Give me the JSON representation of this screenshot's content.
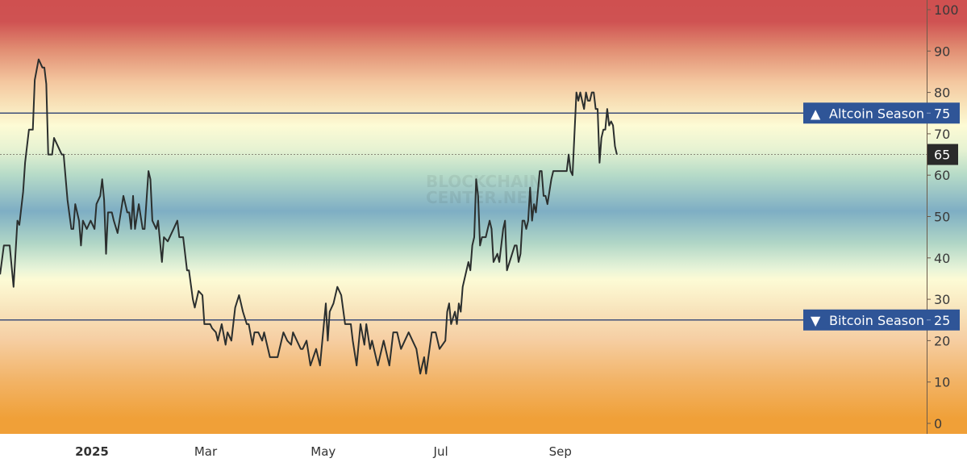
{
  "watermark": {
    "line1": "BLOCKCHAIN",
    "line2": "CENTER.NET"
  },
  "colors": {
    "line": "#2b2f2e",
    "threshold_line": "#3f4f7a",
    "marker_box": "#2f5597",
    "current_box": "#2a2a2a",
    "gradient_top": "#cf5050",
    "gradient_mid": "#7eaec4",
    "gradient_bottom": "#f0a038"
  },
  "chart_data": {
    "type": "line",
    "title": "",
    "xlabel": "",
    "ylabel": "",
    "ylim": [
      0,
      100
    ],
    "y_axis_position": "right",
    "grid": false,
    "y_ticks": [
      "0",
      "10",
      "20",
      "30",
      "40",
      "50",
      "60",
      "70",
      "80",
      "90",
      "100"
    ],
    "x_ticks": [
      {
        "label": "2025",
        "date": "2025-01-01",
        "bold": true
      },
      {
        "label": "Mar",
        "date": "2025-03-01",
        "bold": false
      },
      {
        "label": "May",
        "date": "2025-05-01",
        "bold": false
      },
      {
        "label": "Jul",
        "date": "2025-07-01",
        "bold": false
      },
      {
        "label": "Sep",
        "date": "2025-09-01",
        "bold": false
      }
    ],
    "thresholds": [
      {
        "label": "Altcoin Season",
        "value": 75,
        "value_label": "75",
        "icon": "triangle-up-icon",
        "glyph": "▲"
      },
      {
        "label": "Bitcoin Season",
        "value": 25,
        "value_label": "25",
        "icon": "triangle-down-icon",
        "glyph": "▼"
      }
    ],
    "current": {
      "value": 65,
      "label": "65"
    },
    "series": [
      {
        "points": [
          [
            "2024-11-16",
            36
          ],
          [
            "2024-11-18",
            43
          ],
          [
            "2024-11-21",
            43
          ],
          [
            "2024-11-23",
            33
          ],
          [
            "2024-11-25",
            49
          ],
          [
            "2024-11-26",
            48
          ],
          [
            "2024-11-28",
            56
          ],
          [
            "2024-11-29",
            63
          ],
          [
            "2024-12-01",
            71
          ],
          [
            "2024-12-03",
            71
          ],
          [
            "2024-12-04",
            83
          ],
          [
            "2024-12-06",
            88
          ],
          [
            "2024-12-08",
            86
          ],
          [
            "2024-12-09",
            86
          ],
          [
            "2024-12-10",
            82
          ],
          [
            "2024-12-11",
            65
          ],
          [
            "2024-12-13",
            65
          ],
          [
            "2024-12-14",
            69
          ],
          [
            "2024-12-16",
            67
          ],
          [
            "2024-12-18",
            65
          ],
          [
            "2024-12-19",
            65
          ],
          [
            "2024-12-21",
            54
          ],
          [
            "2024-12-23",
            47
          ],
          [
            "2024-12-24",
            47
          ],
          [
            "2024-12-25",
            53
          ],
          [
            "2024-12-27",
            49
          ],
          [
            "2024-12-28",
            43
          ],
          [
            "2024-12-29",
            49
          ],
          [
            "2024-12-31",
            47
          ],
          [
            "2025-01-02",
            49
          ],
          [
            "2025-01-04",
            47
          ],
          [
            "2025-01-05",
            53
          ],
          [
            "2025-01-07",
            55
          ],
          [
            "2025-01-08",
            59
          ],
          [
            "2025-01-09",
            54
          ],
          [
            "2025-01-10",
            41
          ],
          [
            "2025-01-11",
            51
          ],
          [
            "2025-01-13",
            51
          ],
          [
            "2025-01-14",
            49
          ],
          [
            "2025-01-16",
            46
          ],
          [
            "2025-01-17",
            49
          ],
          [
            "2025-01-19",
            55
          ],
          [
            "2025-01-21",
            51
          ],
          [
            "2025-01-22",
            51
          ],
          [
            "2025-01-23",
            47
          ],
          [
            "2025-01-24",
            55
          ],
          [
            "2025-01-25",
            47
          ],
          [
            "2025-01-27",
            53
          ],
          [
            "2025-01-29",
            47
          ],
          [
            "2025-01-30",
            47
          ],
          [
            "2025-02-01",
            61
          ],
          [
            "2025-02-02",
            59
          ],
          [
            "2025-02-03",
            49
          ],
          [
            "2025-02-05",
            47
          ],
          [
            "2025-02-06",
            49
          ],
          [
            "2025-02-08",
            39
          ],
          [
            "2025-02-09",
            45
          ],
          [
            "2025-02-11",
            44
          ],
          [
            "2025-02-13",
            46
          ],
          [
            "2025-02-14",
            47
          ],
          [
            "2025-02-16",
            49
          ],
          [
            "2025-02-17",
            45
          ],
          [
            "2025-02-19",
            45
          ],
          [
            "2025-02-21",
            37
          ],
          [
            "2025-02-22",
            37
          ],
          [
            "2025-02-24",
            30
          ],
          [
            "2025-02-25",
            28
          ],
          [
            "2025-02-27",
            32
          ],
          [
            "2025-03-01",
            31
          ],
          [
            "2025-03-02",
            24
          ],
          [
            "2025-03-05",
            24
          ],
          [
            "2025-03-06",
            23
          ],
          [
            "2025-03-08",
            22
          ],
          [
            "2025-03-09",
            20
          ],
          [
            "2025-03-11",
            24
          ],
          [
            "2025-03-13",
            19
          ],
          [
            "2025-03-14",
            22
          ],
          [
            "2025-03-16",
            20
          ],
          [
            "2025-03-18",
            28
          ],
          [
            "2025-03-20",
            31
          ],
          [
            "2025-03-21",
            29
          ],
          [
            "2025-03-22",
            27
          ],
          [
            "2025-03-24",
            24
          ],
          [
            "2025-03-25",
            24
          ],
          [
            "2025-03-27",
            19
          ],
          [
            "2025-03-28",
            22
          ],
          [
            "2025-03-30",
            22
          ],
          [
            "2025-04-01",
            20
          ],
          [
            "2025-04-02",
            22
          ],
          [
            "2025-04-03",
            20
          ],
          [
            "2025-04-05",
            16
          ],
          [
            "2025-04-06",
            16
          ],
          [
            "2025-04-09",
            16
          ],
          [
            "2025-04-11",
            20
          ],
          [
            "2025-04-12",
            22
          ],
          [
            "2025-04-14",
            20
          ],
          [
            "2025-04-16",
            19
          ],
          [
            "2025-04-17",
            22
          ],
          [
            "2025-04-19",
            20
          ],
          [
            "2025-04-21",
            18
          ],
          [
            "2025-04-22",
            18
          ],
          [
            "2025-04-24",
            20
          ],
          [
            "2025-04-26",
            14
          ],
          [
            "2025-04-29",
            18
          ],
          [
            "2025-05-01",
            14
          ],
          [
            "2025-05-04",
            29
          ],
          [
            "2025-05-05",
            20
          ],
          [
            "2025-05-06",
            27
          ],
          [
            "2025-05-08",
            29
          ],
          [
            "2025-05-10",
            33
          ],
          [
            "2025-05-12",
            31
          ],
          [
            "2025-05-14",
            24
          ],
          [
            "2025-05-17",
            24
          ],
          [
            "2025-05-18",
            20
          ],
          [
            "2025-05-20",
            14
          ],
          [
            "2025-05-22",
            24
          ],
          [
            "2025-05-24",
            19
          ],
          [
            "2025-05-25",
            24
          ],
          [
            "2025-05-27",
            18
          ],
          [
            "2025-05-28",
            20
          ],
          [
            "2025-05-31",
            14
          ],
          [
            "2025-06-03",
            20
          ],
          [
            "2025-06-06",
            14
          ],
          [
            "2025-06-08",
            22
          ],
          [
            "2025-06-10",
            22
          ],
          [
            "2025-06-12",
            18
          ],
          [
            "2025-06-16",
            22
          ],
          [
            "2025-06-18",
            20
          ],
          [
            "2025-06-20",
            18
          ],
          [
            "2025-06-22",
            12
          ],
          [
            "2025-06-24",
            16
          ],
          [
            "2025-06-25",
            12
          ],
          [
            "2025-06-28",
            22
          ],
          [
            "2025-06-30",
            22
          ],
          [
            "2025-07-02",
            18
          ],
          [
            "2025-07-05",
            20
          ],
          [
            "2025-07-06",
            27
          ],
          [
            "2025-07-07",
            29
          ],
          [
            "2025-07-08",
            24
          ],
          [
            "2025-07-10",
            27
          ],
          [
            "2025-07-11",
            24
          ],
          [
            "2025-07-12",
            29
          ],
          [
            "2025-07-13",
            27
          ],
          [
            "2025-07-14",
            33
          ],
          [
            "2025-07-17",
            39
          ],
          [
            "2025-07-18",
            37
          ],
          [
            "2025-07-19",
            43
          ],
          [
            "2025-07-20",
            45
          ],
          [
            "2025-07-21",
            59
          ],
          [
            "2025-07-22",
            55
          ],
          [
            "2025-07-23",
            43
          ],
          [
            "2025-07-24",
            45
          ],
          [
            "2025-07-26",
            45
          ],
          [
            "2025-07-28",
            49
          ],
          [
            "2025-07-29",
            47
          ],
          [
            "2025-07-30",
            39
          ],
          [
            "2025-08-01",
            41
          ],
          [
            "2025-08-02",
            39
          ],
          [
            "2025-08-04",
            47
          ],
          [
            "2025-08-05",
            49
          ],
          [
            "2025-08-06",
            37
          ],
          [
            "2025-08-10",
            43
          ],
          [
            "2025-08-11",
            43
          ],
          [
            "2025-08-12",
            39
          ],
          [
            "2025-08-13",
            41
          ],
          [
            "2025-08-14",
            49
          ],
          [
            "2025-08-15",
            49
          ],
          [
            "2025-08-16",
            47
          ],
          [
            "2025-08-17",
            49
          ],
          [
            "2025-08-18",
            57
          ],
          [
            "2025-08-19",
            49
          ],
          [
            "2025-08-20",
            53
          ],
          [
            "2025-08-21",
            51
          ],
          [
            "2025-08-23",
            61
          ],
          [
            "2025-08-24",
            61
          ],
          [
            "2025-08-25",
            55
          ],
          [
            "2025-08-26",
            55
          ],
          [
            "2025-08-27",
            53
          ],
          [
            "2025-08-29",
            59
          ],
          [
            "2025-08-30",
            61
          ],
          [
            "2025-09-06",
            61
          ],
          [
            "2025-09-07",
            65
          ],
          [
            "2025-09-08",
            61
          ],
          [
            "2025-09-09",
            60
          ],
          [
            "2025-09-11",
            80
          ],
          [
            "2025-09-12",
            78
          ],
          [
            "2025-09-13",
            80
          ],
          [
            "2025-09-14",
            78
          ],
          [
            "2025-09-15",
            76
          ],
          [
            "2025-09-16",
            80
          ],
          [
            "2025-09-17",
            78
          ],
          [
            "2025-09-18",
            78
          ],
          [
            "2025-09-19",
            80
          ],
          [
            "2025-09-20",
            80
          ],
          [
            "2025-09-21",
            76
          ],
          [
            "2025-09-22",
            76
          ],
          [
            "2025-09-23",
            63
          ],
          [
            "2025-09-24",
            69
          ],
          [
            "2025-09-25",
            71
          ],
          [
            "2025-09-26",
            71
          ],
          [
            "2025-09-27",
            76
          ],
          [
            "2025-09-28",
            72
          ],
          [
            "2025-09-29",
            73
          ],
          [
            "2025-09-30",
            72
          ],
          [
            "2025-10-01",
            67
          ],
          [
            "2025-10-02",
            65
          ]
        ]
      }
    ]
  }
}
